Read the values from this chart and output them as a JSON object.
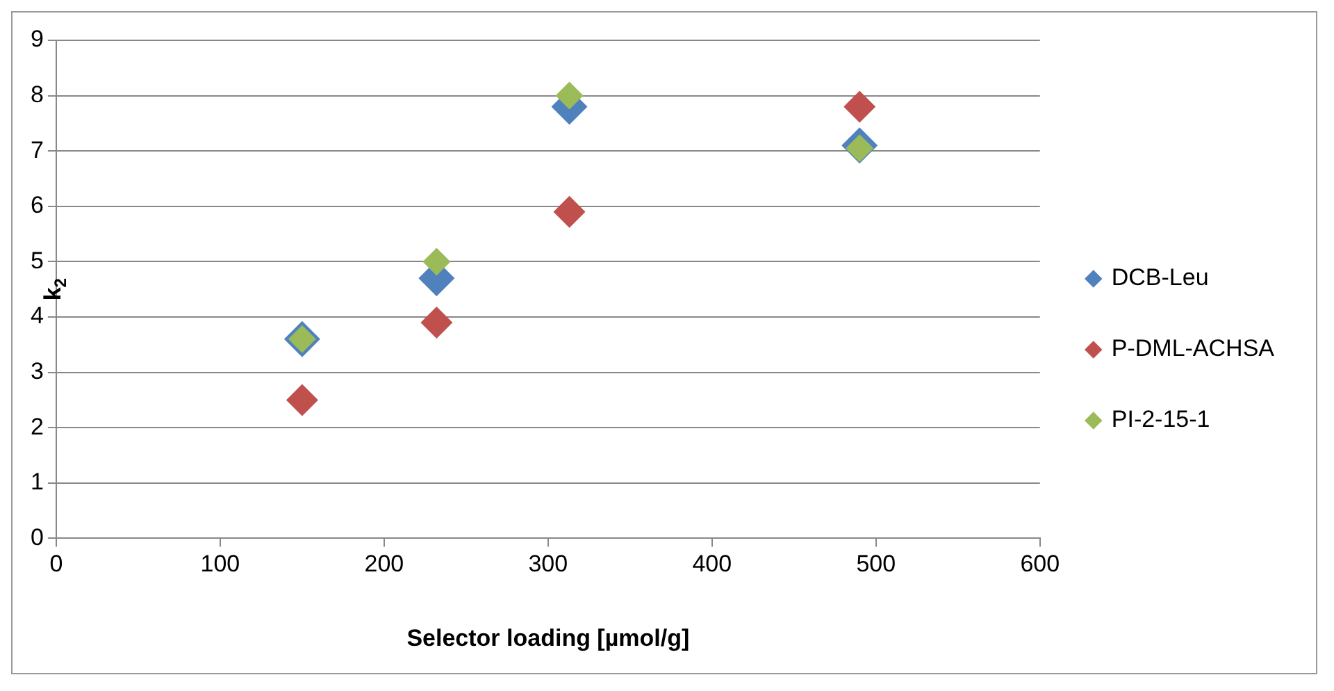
{
  "chart_data": {
    "type": "scatter",
    "xlabel": "Selector loading [µmol/g]",
    "ylabel": "k$_{2}$",
    "x": [
      150,
      232,
      313,
      490
    ],
    "series": [
      {
        "name": "DCB-Leu",
        "color": "#4f81bd",
        "values": [
          3.6,
          4.7,
          7.8,
          7.1
        ]
      },
      {
        "name": "P-DML-ACHSA",
        "color": "#c0504d",
        "values": [
          2.5,
          3.9,
          5.9,
          7.8
        ]
      },
      {
        "name": "PI-2-15-1",
        "color": "#9bbb59",
        "values": [
          3.6,
          5.0,
          8.0,
          7.05
        ]
      }
    ],
    "xlim": [
      0,
      600
    ],
    "xticks": [
      0,
      100,
      200,
      300,
      400,
      500,
      600
    ],
    "ylim": [
      0,
      9
    ],
    "yticks": [
      0,
      1,
      2,
      3,
      4,
      5,
      6,
      7,
      8,
      9
    ],
    "grid": "y",
    "legend": "right",
    "marker": "diamond"
  }
}
